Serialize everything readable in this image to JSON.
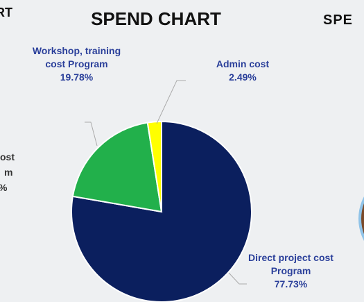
{
  "chart_data": {
    "type": "pie",
    "title": "SPEND CHART",
    "categories": [
      "Direct project cost Program",
      "Workshop, training cost Program",
      "Admin cost"
    ],
    "values": [
      77.73,
      19.78,
      2.49
    ],
    "value_labels": [
      "77.73%",
      "19.78%",
      "2.49%"
    ],
    "colors": [
      "#0b1f5e",
      "#22b04b",
      "#ffff00"
    ]
  },
  "cropped_texts": [
    "RT",
    "ost",
    "m",
    "%",
    "SPE"
  ]
}
